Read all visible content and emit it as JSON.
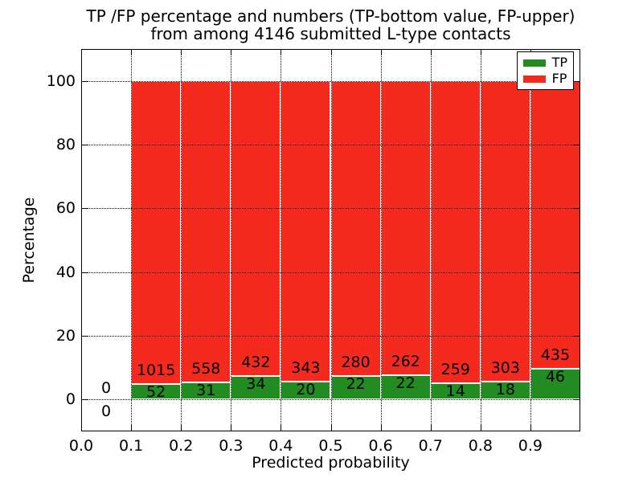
{
  "chart_data": {
    "type": "bar",
    "stacked": true,
    "title_lines": [
      "TP /FP percentage and numbers (TP-bottom value, FP-upper)",
      "from among 4146 submitted L-type contacts"
    ],
    "xlabel": "Predicted probability",
    "ylabel": "Percentage",
    "xlim": [
      0,
      1
    ],
    "ylim": [
      -10,
      110
    ],
    "xtick_labels": [
      "0.0",
      "0.1",
      "0.2",
      "0.3",
      "0.4",
      "0.5",
      "0.6",
      "0.7",
      "0.8",
      "0.9"
    ],
    "ytick_labels": [
      "0",
      "20",
      "40",
      "60",
      "80",
      "100"
    ],
    "grid": "dotted",
    "legend_position": "upper right",
    "series": [
      {
        "name": "TP",
        "color": "#228b22"
      },
      {
        "name": "FP",
        "color": "#f52a1f"
      }
    ],
    "bins": [
      {
        "range": [
          0.0,
          0.1
        ],
        "tp": 0,
        "fp": 0
      },
      {
        "range": [
          0.1,
          0.2
        ],
        "tp": 52,
        "fp": 1015
      },
      {
        "range": [
          0.2,
          0.3
        ],
        "tp": 31,
        "fp": 558
      },
      {
        "range": [
          0.3,
          0.4
        ],
        "tp": 34,
        "fp": 432
      },
      {
        "range": [
          0.4,
          0.5
        ],
        "tp": 20,
        "fp": 343
      },
      {
        "range": [
          0.5,
          0.6
        ],
        "tp": 22,
        "fp": 280
      },
      {
        "range": [
          0.6,
          0.7
        ],
        "tp": 22,
        "fp": 262
      },
      {
        "range": [
          0.7,
          0.8
        ],
        "tp": 14,
        "fp": 259
      },
      {
        "range": [
          0.8,
          0.9
        ],
        "tp": 18,
        "fp": 303
      },
      {
        "range": [
          0.9,
          1.0
        ],
        "tp": 46,
        "fp": 435
      }
    ]
  }
}
